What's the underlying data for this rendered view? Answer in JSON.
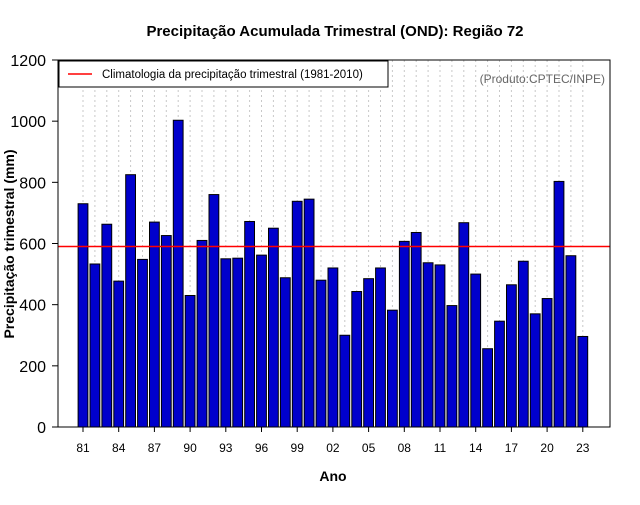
{
  "chart_data": {
    "type": "bar",
    "title": "Precipitação Acumulada Trimestral (OND): Região 72",
    "xlabel": "Ano",
    "ylabel": "Precipitação trimestral (mm)",
    "credit": "(Produto:CPTEC/INPE)",
    "ylim": [
      0,
      1200
    ],
    "yticks": [
      0,
      200,
      400,
      600,
      800,
      1000,
      1200
    ],
    "xtick_labels": [
      "81",
      "84",
      "87",
      "90",
      "93",
      "96",
      "99",
      "02",
      "05",
      "08",
      "11",
      "14",
      "17",
      "20",
      "23"
    ],
    "xtick_years": [
      1981,
      1984,
      1987,
      1990,
      1993,
      1996,
      1999,
      2002,
      2005,
      2008,
      2011,
      2014,
      2017,
      2020,
      2023
    ],
    "categories": [
      1981,
      1982,
      1983,
      1984,
      1985,
      1986,
      1987,
      1988,
      1989,
      1990,
      1991,
      1992,
      1993,
      1994,
      1995,
      1996,
      1997,
      1998,
      1999,
      2000,
      2001,
      2002,
      2003,
      2004,
      2005,
      2006,
      2007,
      2008,
      2009,
      2010,
      2011,
      2012,
      2013,
      2014,
      2015,
      2016,
      2017,
      2018,
      2019,
      2020,
      2021,
      2022,
      2023
    ],
    "values": [
      730,
      533,
      663,
      477,
      825,
      548,
      670,
      626,
      1003,
      430,
      610,
      760,
      550,
      552,
      672,
      562,
      650,
      488,
      738,
      745,
      480,
      520,
      300,
      443,
      485,
      520,
      382,
      607,
      636,
      537,
      530,
      397,
      668,
      500,
      256,
      346,
      465,
      542,
      370,
      420,
      803,
      560,
      296
    ],
    "reference_line": {
      "label": "Climatologia da precipitação trimestral (1981-2010)",
      "value": 590
    },
    "legend_position": "top-left",
    "colors": {
      "bar": "#0000cc",
      "bar_edge": "#000000",
      "reference": "#ff0000",
      "grid": "#c8c8c8",
      "credit": "#666666"
    }
  }
}
